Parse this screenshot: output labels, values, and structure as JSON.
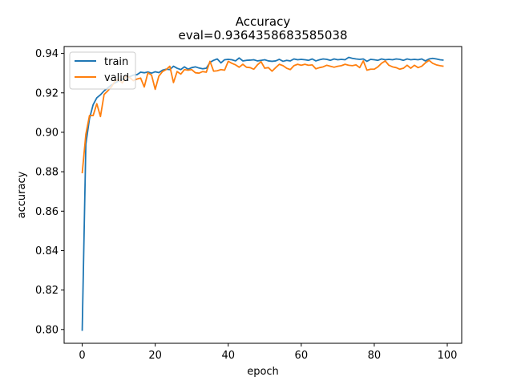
{
  "chart_data": {
    "type": "line",
    "title": "Accuracy",
    "subtitle": "eval=0.9364358683585038",
    "xlabel": "epoch",
    "ylabel": "accuracy",
    "xlim": [
      -4.95,
      103.95
    ],
    "ylim": [
      0.793,
      0.9435
    ],
    "xticks": [
      0,
      20,
      40,
      60,
      80,
      100
    ],
    "yticks": [
      0.8,
      0.82,
      0.84,
      0.86,
      0.88,
      0.9,
      0.92,
      0.94
    ],
    "ytick_labels": [
      "0.80",
      "0.82",
      "0.84",
      "0.86",
      "0.88",
      "0.90",
      "0.92",
      "0.94"
    ],
    "grid": false,
    "legend_position": "top-left",
    "series": [
      {
        "name": "train",
        "color": "#1f77b4",
        "values": [
          0.7993,
          0.894,
          0.907,
          0.914,
          0.9175,
          0.919,
          0.921,
          0.9225,
          0.924,
          0.925,
          0.926,
          0.9268,
          0.9275,
          0.9282,
          0.929,
          0.9292,
          0.9305,
          0.9302,
          0.9306,
          0.93,
          0.9307,
          0.9303,
          0.9315,
          0.932,
          0.9318,
          0.9335,
          0.9325,
          0.9318,
          0.9332,
          0.932,
          0.9328,
          0.9332,
          0.9326,
          0.9322,
          0.9325,
          0.9355,
          0.9365,
          0.9372,
          0.9352,
          0.9368,
          0.937,
          0.9368,
          0.9362,
          0.9377,
          0.9362,
          0.9365,
          0.9366,
          0.9368,
          0.9362,
          0.9365,
          0.9368,
          0.9362,
          0.936,
          0.9362,
          0.937,
          0.936,
          0.9365,
          0.9362,
          0.9372,
          0.9368,
          0.937,
          0.9368,
          0.9365,
          0.9372,
          0.9362,
          0.9368,
          0.9372,
          0.937,
          0.9365,
          0.9372,
          0.9368,
          0.937,
          0.9368,
          0.938,
          0.9375,
          0.9372,
          0.937,
          0.9372,
          0.936,
          0.937,
          0.9368,
          0.9365,
          0.9372,
          0.9368,
          0.937,
          0.9368,
          0.9372,
          0.937,
          0.9365,
          0.9372,
          0.9368,
          0.937,
          0.9368,
          0.9372,
          0.9362,
          0.9372,
          0.9375,
          0.9372,
          0.9368,
          0.9366
        ]
      },
      {
        "name": "valid",
        "color": "#ff7f0e",
        "values": [
          0.8792,
          0.899,
          0.9085,
          0.9085,
          0.9145,
          0.908,
          0.9192,
          0.921,
          0.923,
          0.926,
          0.9268,
          0.925,
          0.9285,
          0.9278,
          0.9262,
          0.927,
          0.9275,
          0.923,
          0.9302,
          0.929,
          0.9218,
          0.9285,
          0.9308,
          0.9318,
          0.9335,
          0.9252,
          0.9308,
          0.9295,
          0.9318,
          0.9315,
          0.9318,
          0.9302,
          0.93,
          0.9308,
          0.9305,
          0.936,
          0.931,
          0.9312,
          0.9318,
          0.9315,
          0.936,
          0.935,
          0.9342,
          0.933,
          0.9345,
          0.933,
          0.9328,
          0.932,
          0.9342,
          0.9358,
          0.9325,
          0.9328,
          0.931,
          0.9328,
          0.9345,
          0.9338,
          0.9325,
          0.9318,
          0.9338,
          0.9345,
          0.934,
          0.9345,
          0.934,
          0.9342,
          0.9322,
          0.9328,
          0.9332,
          0.934,
          0.9335,
          0.933,
          0.9335,
          0.9338,
          0.9345,
          0.934,
          0.9338,
          0.9342,
          0.9328,
          0.9362,
          0.9315,
          0.932,
          0.932,
          0.9332,
          0.935,
          0.9362,
          0.934,
          0.9332,
          0.9328,
          0.932,
          0.9325,
          0.934,
          0.9325,
          0.934,
          0.9328,
          0.9335,
          0.9352,
          0.9365,
          0.935,
          0.9342,
          0.9338,
          0.9335
        ]
      }
    ]
  }
}
